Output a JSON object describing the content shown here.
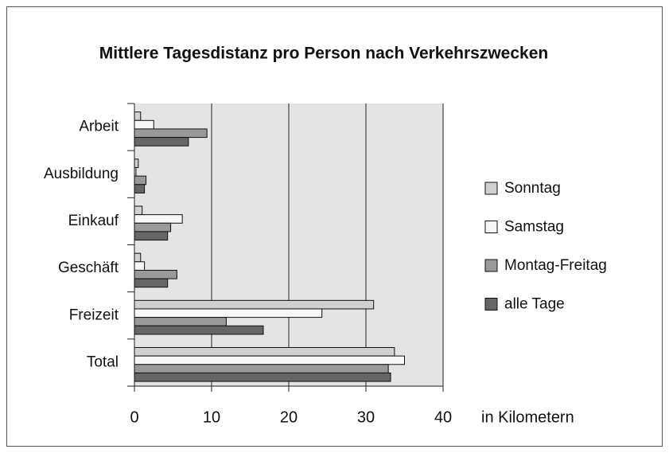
{
  "chart_data": {
    "type": "bar",
    "orientation": "horizontal",
    "title": "Mittlere Tagesdistanz pro Person nach Verkehrszwecken",
    "xlabel": "in Kilometern",
    "categories": [
      "Arbeit",
      "Ausbildung",
      "Einkauf",
      "Geschäft",
      "Freizeit",
      "Total"
    ],
    "series": [
      {
        "name": "Sonntag",
        "color": "#d0d0d0",
        "values": [
          0.8,
          0.5,
          1.0,
          0.8,
          31.0,
          33.7
        ]
      },
      {
        "name": "Samstag",
        "color": "#f7f7f7",
        "values": [
          2.5,
          0.2,
          6.2,
          1.3,
          24.3,
          35.0
        ]
      },
      {
        "name": "Montag-Freitag",
        "color": "#999999",
        "values": [
          9.4,
          1.5,
          4.7,
          5.5,
          11.9,
          32.9
        ]
      },
      {
        "name": "alle Tage",
        "color": "#666666",
        "values": [
          7.0,
          1.3,
          4.3,
          4.3,
          16.7,
          33.2
        ]
      }
    ],
    "xlim": [
      0,
      40
    ],
    "xticks": [
      0,
      10,
      20,
      30,
      40
    ],
    "grid": true,
    "legend": "right"
  }
}
